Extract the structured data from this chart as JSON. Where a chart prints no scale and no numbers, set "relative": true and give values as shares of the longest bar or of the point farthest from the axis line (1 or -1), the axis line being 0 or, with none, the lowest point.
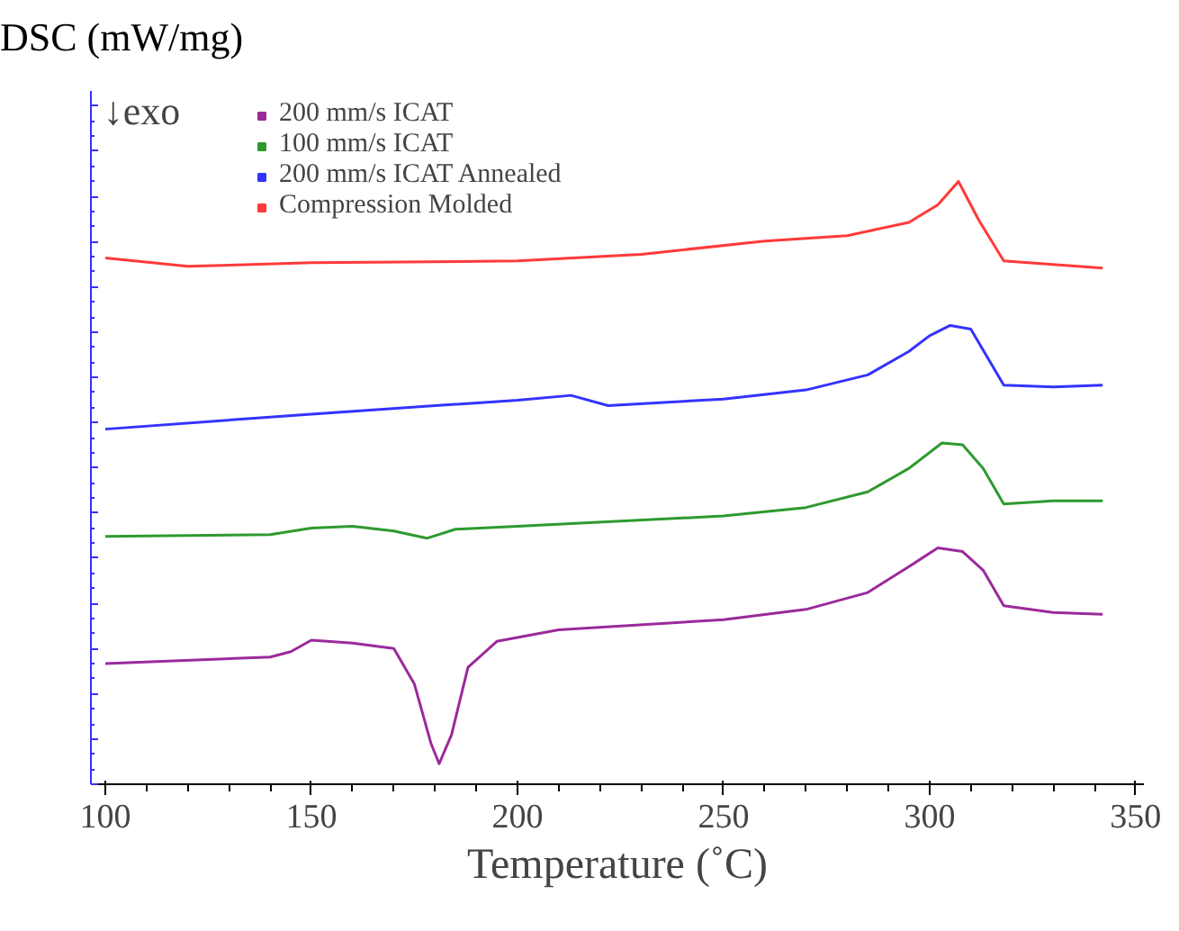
{
  "chart_data": {
    "type": "line",
    "relative": true,
    "xlabel": "Temperature (˚C)",
    "ylabel": "DSC (mW/mg)",
    "annotations": [
      "↓exo"
    ],
    "xlim": [
      96.5,
      352
    ],
    "xticks": [
      100,
      150,
      200,
      250,
      300,
      350
    ],
    "grid": false,
    "legend": "top left",
    "tick_labels": "x",
    "line_style": "solid",
    "marker": "none",
    "series": [
      {
        "name": "200 mm/s ICAT",
        "color": "#9b2a9b",
        "x": [
          100,
          140,
          145,
          150,
          160,
          170,
          175,
          179,
          181,
          184,
          188,
          195,
          210,
          250,
          270,
          285,
          295,
          302,
          308,
          313,
          318,
          330,
          342
        ],
        "values": [
          0.2,
          0.211,
          0.22,
          0.239,
          0.234,
          0.225,
          0.166,
          0.068,
          0.034,
          0.082,
          0.194,
          0.237,
          0.256,
          0.273,
          0.29,
          0.318,
          0.361,
          0.392,
          0.386,
          0.355,
          0.296,
          0.285,
          0.282
        ]
      },
      {
        "name": "100 mm/s ICAT",
        "color": "#2e9a2e",
        "x": [
          100,
          140,
          150,
          160,
          170,
          178,
          185,
          200,
          250,
          270,
          285,
          295,
          303,
          308,
          313,
          318,
          330,
          342
        ],
        "values": [
          0.411,
          0.414,
          0.425,
          0.428,
          0.42,
          0.408,
          0.423,
          0.428,
          0.445,
          0.459,
          0.485,
          0.524,
          0.566,
          0.563,
          0.524,
          0.465,
          0.47,
          0.47
        ]
      },
      {
        "name": "200 mm/s ICAT Annealed",
        "color": "#3333ff",
        "x": [
          100,
          150,
          180,
          200,
          213,
          222,
          250,
          270,
          285,
          295,
          300,
          305,
          310,
          318,
          330,
          342
        ],
        "values": [
          0.589,
          0.614,
          0.628,
          0.637,
          0.645,
          0.628,
          0.639,
          0.654,
          0.679,
          0.718,
          0.744,
          0.761,
          0.755,
          0.662,
          0.659,
          0.662
        ]
      },
      {
        "name": "Compression Molded",
        "color": "#ff3a3a",
        "x": [
          100,
          120,
          150,
          200,
          230,
          260,
          280,
          295,
          302,
          307,
          312,
          318,
          330,
          342
        ],
        "values": [
          0.873,
          0.859,
          0.865,
          0.868,
          0.879,
          0.901,
          0.91,
          0.932,
          0.961,
          1,
          0.935,
          0.868,
          0.862,
          0.856
        ]
      }
    ]
  }
}
